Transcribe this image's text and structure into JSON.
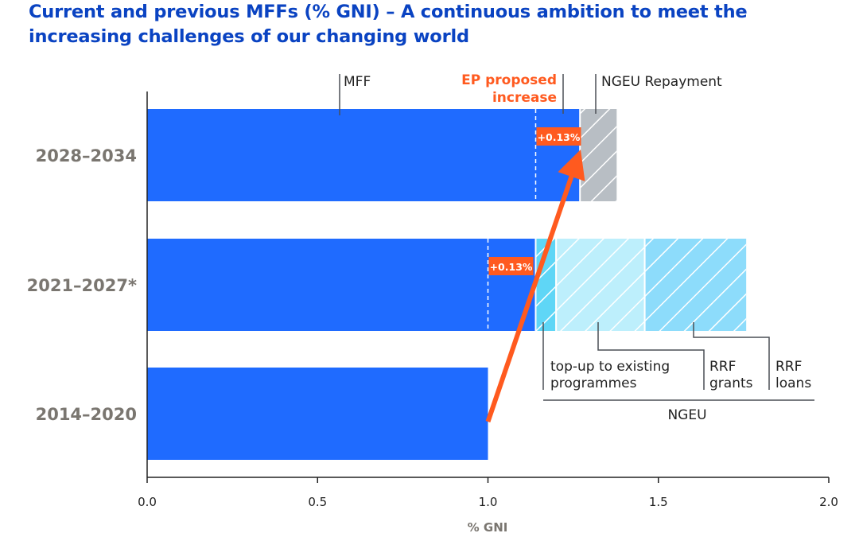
{
  "chart_data": {
    "type": "bar",
    "orientation": "horizontal",
    "stacked": true,
    "title": "Current and previous MFFs (% GNI) – A continuous ambition to meet the increasing challenges of our changing world",
    "xlabel": "% GNI",
    "xlim": [
      0,
      2.0
    ],
    "xticks": [
      "0.0",
      "0.5",
      "1.0",
      "1.5",
      "2.0"
    ],
    "grid": false,
    "categories": [
      "2028–2034",
      "2021–2027*",
      "2014–2020"
    ],
    "series": [
      {
        "name": "MFF",
        "values": [
          1.27,
          1.14,
          1.0
        ],
        "color": "#1f6bff"
      },
      {
        "name": "NGEU Repayment",
        "values": [
          0.11,
          0,
          0
        ],
        "color": "#b8bec4",
        "hatched": true
      },
      {
        "name": "top-up to existing programmes",
        "values": [
          0,
          0.06,
          0
        ],
        "color": "#5fd6f6",
        "hatched": true
      },
      {
        "name": "RRF grants",
        "values": [
          0,
          0.26,
          0
        ],
        "color": "#bdeffc",
        "hatched": true
      },
      {
        "name": "RRF loans",
        "values": [
          0,
          0.3,
          0
        ],
        "color": "#8ddcfb",
        "hatched": true
      }
    ],
    "increase_labels": [
      {
        "category": "2028–2034",
        "from": 1.14,
        "label": "+0.13%"
      },
      {
        "category": "2021–2027*",
        "from": 1.0,
        "label": "+0.13%"
      }
    ],
    "annotations": {
      "mff": "MFF",
      "ep_line1": "EP proposed",
      "ep_line2": "increase",
      "repayment": "NGEU Repayment",
      "topup_line1": "top-up to existing",
      "topup_line2": "programmes",
      "grants_line1": "RRF",
      "grants_line2": "grants",
      "loans_line1": "RRF",
      "loans_line2": "loans",
      "ngeu": "NGEU"
    },
    "arrow": {
      "from": [
        1.0,
        "2014–2020"
      ],
      "to": [
        1.27,
        "2028–2034"
      ],
      "color": "#ff5a1f"
    }
  }
}
